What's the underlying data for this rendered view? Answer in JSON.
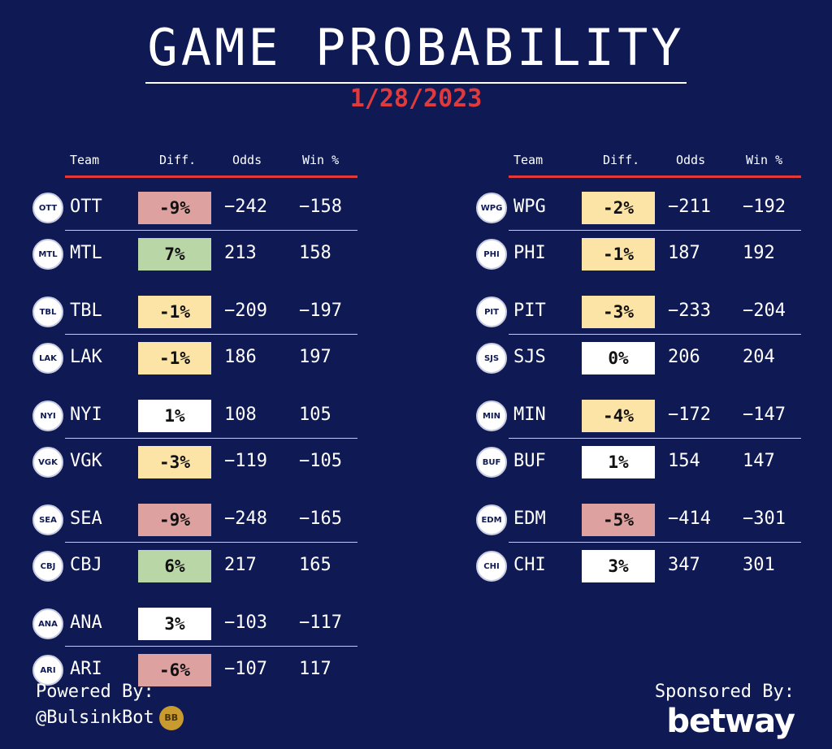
{
  "title": "GAME PROBABILITY",
  "date": "1/28/2023",
  "headers": {
    "team": "Team",
    "diff": "Diff.",
    "odds": "Odds",
    "win": "Win %"
  },
  "colors": {
    "neg": "#dda19f",
    "pos": "#b9d6a6",
    "small": "#fbe4a6",
    "neutral": "#ffffff",
    "accent": "#e23a3a",
    "background": "#0f1a55"
  },
  "left_games": [
    [
      {
        "logo": "ottawa-senators-logo",
        "team": "OTT",
        "diff": "-9%",
        "diff_color": "#dda19f",
        "odds": "−242",
        "win": "−158"
      },
      {
        "logo": "montreal-canadiens-logo",
        "team": "MTL",
        "diff": "7%",
        "diff_color": "#b9d6a6",
        "odds": "213",
        "win": "158"
      }
    ],
    [
      {
        "logo": "tampa-bay-lightning-logo",
        "team": "TBL",
        "diff": "-1%",
        "diff_color": "#fbe4a6",
        "odds": "−209",
        "win": "−197"
      },
      {
        "logo": "la-kings-logo",
        "team": "LAK",
        "diff": "-1%",
        "diff_color": "#fbe4a6",
        "odds": "186",
        "win": "197"
      }
    ],
    [
      {
        "logo": "ny-islanders-logo",
        "team": "NYI",
        "diff": "1%",
        "diff_color": "#ffffff",
        "odds": "108",
        "win": "105"
      },
      {
        "logo": "vegas-golden-knights-logo",
        "team": "VGK",
        "diff": "-3%",
        "diff_color": "#fbe4a6",
        "odds": "−119",
        "win": "−105"
      }
    ],
    [
      {
        "logo": "seattle-kraken-logo",
        "team": "SEA",
        "diff": "-9%",
        "diff_color": "#dda19f",
        "odds": "−248",
        "win": "−165"
      },
      {
        "logo": "columbus-blue-jackets-logo",
        "team": "CBJ",
        "diff": "6%",
        "diff_color": "#b9d6a6",
        "odds": "217",
        "win": "165"
      }
    ],
    [
      {
        "logo": "anaheim-ducks-logo",
        "team": "ANA",
        "diff": "3%",
        "diff_color": "#ffffff",
        "odds": "−103",
        "win": "−117"
      },
      {
        "logo": "arizona-coyotes-logo",
        "team": "ARI",
        "diff": "-6%",
        "diff_color": "#dda19f",
        "odds": "−107",
        "win": "117"
      }
    ]
  ],
  "right_games": [
    [
      {
        "logo": "winnipeg-jets-logo",
        "team": "WPG",
        "diff": "-2%",
        "diff_color": "#fbe4a6",
        "odds": "−211",
        "win": "−192"
      },
      {
        "logo": "philadelphia-flyers-logo",
        "team": "PHI",
        "diff": "-1%",
        "diff_color": "#fbe4a6",
        "odds": "187",
        "win": "192"
      }
    ],
    [
      {
        "logo": "pittsburgh-penguins-logo",
        "team": "PIT",
        "diff": "-3%",
        "diff_color": "#fbe4a6",
        "odds": "−233",
        "win": "−204"
      },
      {
        "logo": "san-jose-sharks-logo",
        "team": "SJS",
        "diff": "0%",
        "diff_color": "#ffffff",
        "odds": "206",
        "win": "204"
      }
    ],
    [
      {
        "logo": "minnesota-wild-logo",
        "team": "MIN",
        "diff": "-4%",
        "diff_color": "#fbe4a6",
        "odds": "−172",
        "win": "−147"
      },
      {
        "logo": "buffalo-sabres-logo",
        "team": "BUF",
        "diff": "1%",
        "diff_color": "#ffffff",
        "odds": "154",
        "win": "147"
      }
    ],
    [
      {
        "logo": "edmonton-oilers-logo",
        "team": "EDM",
        "diff": "-5%",
        "diff_color": "#dda19f",
        "odds": "−414",
        "win": "−301"
      },
      {
        "logo": "chicago-blackhawks-logo",
        "team": "CHI",
        "diff": "3%",
        "diff_color": "#ffffff",
        "odds": "347",
        "win": "301"
      }
    ]
  ],
  "footer": {
    "powered_by": "Powered By:",
    "bot": "@BulsinkBot",
    "bot_badge": "BB",
    "sponsored_by": "Sponsored By:",
    "sponsor": "betway"
  }
}
